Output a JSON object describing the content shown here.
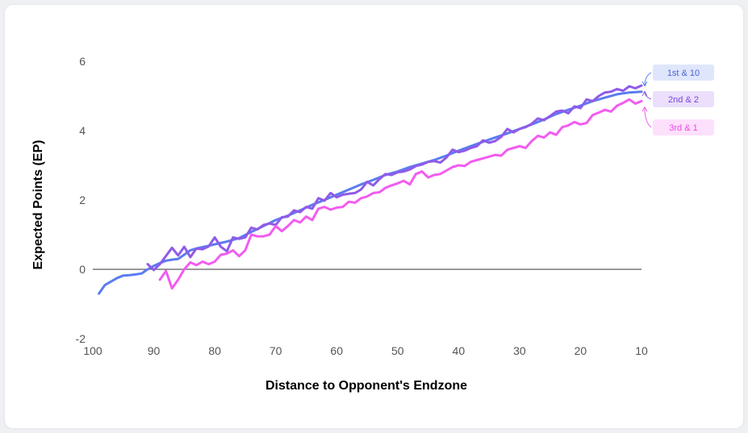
{
  "chart_data": {
    "type": "line",
    "title": "",
    "xlabel": "Distance to Opponent's Endzone",
    "ylabel": "Expected Points (EP)",
    "xlim": [
      100,
      10
    ],
    "ylim": [
      -2,
      6
    ],
    "x_ticks": [
      100,
      90,
      80,
      70,
      60,
      50,
      40,
      30,
      20,
      10
    ],
    "y_ticks": [
      6,
      4,
      2,
      0,
      -2
    ],
    "zero_line": true,
    "grid": false,
    "legend": "right, end-of-line labels",
    "series": [
      {
        "name": "1st & 10",
        "color": "#5b7cf0",
        "badge_bg": "#dfe6fc",
        "badge_text_color": "#4a63d8",
        "x": [
          99,
          98,
          97,
          96,
          95,
          94,
          93,
          92,
          91,
          90,
          89,
          88,
          87,
          86,
          85,
          84,
          83,
          82,
          81,
          80,
          78,
          76,
          74,
          72,
          70,
          68,
          66,
          64,
          62,
          60,
          58,
          56,
          54,
          52,
          50,
          48,
          46,
          44,
          42,
          40,
          38,
          36,
          34,
          32,
          30,
          28,
          26,
          24,
          22,
          20,
          18,
          16,
          14,
          12,
          10
        ],
        "y": [
          -0.7,
          -0.45,
          -0.35,
          -0.25,
          -0.18,
          -0.17,
          -0.15,
          -0.12,
          0.0,
          0.1,
          0.18,
          0.25,
          0.28,
          0.3,
          0.42,
          0.55,
          0.6,
          0.64,
          0.68,
          0.72,
          0.8,
          0.9,
          1.08,
          1.25,
          1.42,
          1.55,
          1.7,
          1.86,
          2.0,
          2.15,
          2.3,
          2.45,
          2.58,
          2.72,
          2.82,
          2.95,
          3.05,
          3.15,
          3.28,
          3.42,
          3.55,
          3.68,
          3.8,
          3.92,
          4.05,
          4.18,
          4.32,
          4.48,
          4.6,
          4.72,
          4.85,
          4.95,
          5.05,
          5.1,
          5.12
        ]
      },
      {
        "name": "2nd & 2",
        "color": "#8f5be8",
        "badge_bg": "#ebdffb",
        "badge_text_color": "#7a48d6",
        "x": [
          91,
          90,
          89,
          87,
          86,
          85,
          84,
          83,
          82,
          81,
          80,
          79,
          78,
          77,
          76,
          75,
          74,
          73,
          72,
          71,
          70,
          69,
          68,
          67,
          66,
          65,
          64,
          63,
          62,
          61,
          60,
          59,
          58,
          57,
          56,
          55,
          54,
          53,
          52,
          51,
          50,
          49,
          48,
          47,
          46,
          45,
          44,
          43,
          42,
          41,
          40,
          39,
          38,
          37,
          36,
          35,
          34,
          33,
          32,
          31,
          30,
          29,
          28,
          27,
          26,
          25,
          24,
          23,
          22,
          21,
          20,
          19,
          18,
          17,
          16,
          15,
          14,
          13,
          12,
          11,
          10
        ],
        "y": [
          0.15,
          -0.02,
          0.15,
          0.62,
          0.4,
          0.65,
          0.35,
          0.6,
          0.58,
          0.66,
          0.92,
          0.65,
          0.52,
          0.92,
          0.88,
          0.92,
          1.2,
          1.15,
          1.28,
          1.32,
          1.28,
          1.5,
          1.52,
          1.7,
          1.65,
          1.8,
          1.75,
          2.05,
          1.98,
          2.2,
          2.08,
          2.15,
          2.18,
          2.2,
          2.3,
          2.52,
          2.42,
          2.6,
          2.75,
          2.72,
          2.8,
          2.82,
          2.88,
          2.98,
          3.02,
          3.1,
          3.12,
          3.08,
          3.22,
          3.45,
          3.38,
          3.42,
          3.5,
          3.55,
          3.72,
          3.65,
          3.7,
          3.82,
          4.05,
          3.95,
          4.05,
          4.1,
          4.2,
          4.35,
          4.3,
          4.42,
          4.55,
          4.58,
          4.5,
          4.7,
          4.65,
          4.9,
          4.85,
          5.0,
          5.1,
          5.12,
          5.2,
          5.15,
          5.28,
          5.22,
          5.3
        ]
      },
      {
        "name": "3rd & 1",
        "color": "#f25cf0",
        "badge_bg": "#fde0fb",
        "badge_text_color": "#e74be6",
        "x": [
          89,
          88,
          87,
          86,
          85,
          84,
          83,
          82,
          81,
          80,
          79,
          78,
          77,
          76,
          75,
          74,
          73,
          72,
          71,
          70,
          69,
          68,
          67,
          66,
          65,
          64,
          63,
          62,
          61,
          60,
          59,
          58,
          57,
          56,
          55,
          54,
          53,
          52,
          51,
          50,
          49,
          48,
          47,
          46,
          45,
          44,
          43,
          42,
          41,
          40,
          39,
          38,
          37,
          36,
          35,
          34,
          33,
          32,
          31,
          30,
          29,
          28,
          27,
          26,
          25,
          24,
          23,
          22,
          21,
          20,
          19,
          18,
          17,
          16,
          15,
          14,
          13,
          12,
          11,
          10
        ],
        "y": [
          -0.3,
          -0.05,
          -0.55,
          -0.3,
          0.0,
          0.2,
          0.12,
          0.22,
          0.15,
          0.22,
          0.42,
          0.45,
          0.55,
          0.38,
          0.55,
          1.0,
          0.95,
          0.95,
          1.0,
          1.25,
          1.1,
          1.25,
          1.42,
          1.35,
          1.52,
          1.42,
          1.75,
          1.8,
          1.72,
          1.78,
          1.8,
          1.95,
          1.92,
          2.05,
          2.1,
          2.2,
          2.22,
          2.35,
          2.42,
          2.48,
          2.55,
          2.45,
          2.75,
          2.82,
          2.65,
          2.72,
          2.75,
          2.85,
          2.95,
          3.0,
          2.98,
          3.1,
          3.15,
          3.2,
          3.25,
          3.3,
          3.28,
          3.45,
          3.5,
          3.55,
          3.5,
          3.7,
          3.85,
          3.8,
          3.95,
          3.88,
          4.1,
          4.15,
          4.25,
          4.18,
          4.22,
          4.45,
          4.52,
          4.6,
          4.55,
          4.72,
          4.8,
          4.9,
          4.78,
          4.85
        ]
      }
    ]
  }
}
